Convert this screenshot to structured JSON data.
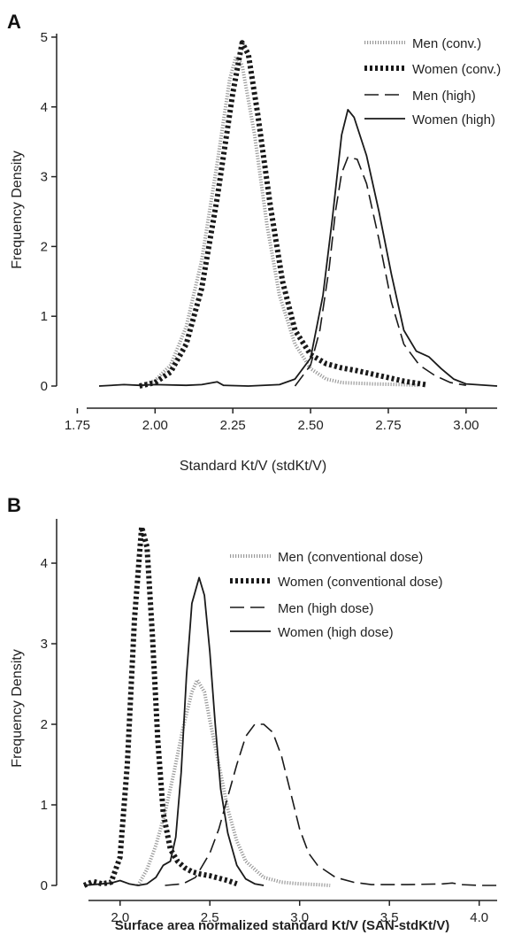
{
  "chart_data": [
    {
      "type": "line",
      "panel_label": "A",
      "xlabel": "Standard Kt/V (stdKt/V)",
      "ylabel": "Frequency Density",
      "xlim": [
        1.8,
        3.1
      ],
      "ylim": [
        0,
        5.05
      ],
      "xticks": [
        1.75,
        2.0,
        2.25,
        2.5,
        2.75,
        3.0
      ],
      "xtick_labels": [
        "1.75",
        "2.00",
        "2.25",
        "2.50",
        "2.75",
        "3.00"
      ],
      "yticks": [
        0,
        1,
        2,
        3,
        4,
        5
      ],
      "ytick_labels": [
        "0",
        "1",
        "2",
        "3",
        "4",
        "5"
      ],
      "grid": false,
      "legend_position": "top-right",
      "series": [
        {
          "name": "Men (conv.)",
          "style": "dotted-thin",
          "points": [
            [
              1.95,
              0
            ],
            [
              2.0,
              0.08
            ],
            [
              2.05,
              0.3
            ],
            [
              2.1,
              0.85
            ],
            [
              2.15,
              1.8
            ],
            [
              2.2,
              3.2
            ],
            [
              2.24,
              4.4
            ],
            [
              2.26,
              4.72
            ],
            [
              2.28,
              4.6
            ],
            [
              2.32,
              3.6
            ],
            [
              2.36,
              2.3
            ],
            [
              2.4,
              1.3
            ],
            [
              2.45,
              0.6
            ],
            [
              2.5,
              0.25
            ],
            [
              2.55,
              0.1
            ],
            [
              2.6,
              0.05
            ],
            [
              2.7,
              0.03
            ],
            [
              2.8,
              0.02
            ],
            [
              2.85,
              0.01
            ]
          ]
        },
        {
          "name": "Women (conv.)",
          "style": "dotted-thick",
          "points": [
            [
              1.95,
              0
            ],
            [
              2.0,
              0.05
            ],
            [
              2.05,
              0.2
            ],
            [
              2.1,
              0.6
            ],
            [
              2.15,
              1.4
            ],
            [
              2.2,
              2.7
            ],
            [
              2.25,
              4.2
            ],
            [
              2.28,
              4.92
            ],
            [
              2.3,
              4.75
            ],
            [
              2.33,
              3.9
            ],
            [
              2.37,
              2.6
            ],
            [
              2.41,
              1.5
            ],
            [
              2.45,
              0.8
            ],
            [
              2.5,
              0.45
            ],
            [
              2.55,
              0.32
            ],
            [
              2.6,
              0.26
            ],
            [
              2.65,
              0.22
            ],
            [
              2.7,
              0.17
            ],
            [
              2.75,
              0.12
            ],
            [
              2.8,
              0.07
            ],
            [
              2.87,
              0.02
            ]
          ]
        },
        {
          "name": "Men (high)",
          "style": "dashed",
          "points": [
            [
              2.45,
              0
            ],
            [
              2.5,
              0.3
            ],
            [
              2.53,
              0.8
            ],
            [
              2.56,
              1.7
            ],
            [
              2.58,
              2.5
            ],
            [
              2.6,
              3.05
            ],
            [
              2.62,
              3.28
            ],
            [
              2.65,
              3.25
            ],
            [
              2.68,
              2.9
            ],
            [
              2.72,
              2.1
            ],
            [
              2.76,
              1.2
            ],
            [
              2.8,
              0.6
            ],
            [
              2.85,
              0.3
            ],
            [
              2.9,
              0.15
            ],
            [
              2.95,
              0.05
            ],
            [
              3.0,
              0.01
            ]
          ]
        },
        {
          "name": "Women (high)",
          "style": "solid",
          "points": [
            [
              1.82,
              0
            ],
            [
              1.9,
              0.02
            ],
            [
              1.95,
              0.01
            ],
            [
              2.0,
              0.02
            ],
            [
              2.1,
              0.01
            ],
            [
              2.15,
              0.02
            ],
            [
              2.2,
              0.06
            ],
            [
              2.22,
              0.01
            ],
            [
              2.3,
              0
            ],
            [
              2.4,
              0.02
            ],
            [
              2.45,
              0.1
            ],
            [
              2.5,
              0.4
            ],
            [
              2.54,
              1.3
            ],
            [
              2.57,
              2.4
            ],
            [
              2.6,
              3.6
            ],
            [
              2.62,
              3.96
            ],
            [
              2.64,
              3.85
            ],
            [
              2.68,
              3.3
            ],
            [
              2.72,
              2.5
            ],
            [
              2.76,
              1.6
            ],
            [
              2.8,
              0.8
            ],
            [
              2.84,
              0.5
            ],
            [
              2.88,
              0.42
            ],
            [
              2.92,
              0.25
            ],
            [
              2.96,
              0.1
            ],
            [
              3.0,
              0.03
            ],
            [
              3.1,
              0
            ]
          ]
        }
      ]
    },
    {
      "type": "line",
      "panel_label": "B",
      "xlabel": "Surface area normalized standard Kt/V (SAN-stdKt/V)",
      "ylabel": "Frequency Density",
      "xlim": [
        1.75,
        4.1
      ],
      "ylim": [
        0,
        4.55
      ],
      "xticks": [
        2.0,
        2.5,
        3.0,
        3.5,
        4.0
      ],
      "xtick_labels": [
        "2.0",
        "2.5",
        "3.0",
        "3.5",
        "4.0"
      ],
      "yticks": [
        0,
        1,
        2,
        3,
        4
      ],
      "ytick_labels": [
        "0",
        "1",
        "2",
        "3",
        "4"
      ],
      "grid": false,
      "legend_position": "top-right",
      "series": [
        {
          "name": "Men (conventional dose)",
          "style": "dotted-thin",
          "points": [
            [
              2.1,
              0
            ],
            [
              2.15,
              0.2
            ],
            [
              2.2,
              0.5
            ],
            [
              2.25,
              0.9
            ],
            [
              2.3,
              1.4
            ],
            [
              2.35,
              1.95
            ],
            [
              2.4,
              2.4
            ],
            [
              2.43,
              2.55
            ],
            [
              2.47,
              2.4
            ],
            [
              2.5,
              2.05
            ],
            [
              2.55,
              1.5
            ],
            [
              2.6,
              0.95
            ],
            [
              2.65,
              0.55
            ],
            [
              2.7,
              0.3
            ],
            [
              2.8,
              0.1
            ],
            [
              2.9,
              0.04
            ],
            [
              3.0,
              0.02
            ],
            [
              3.1,
              0.01
            ],
            [
              3.17,
              0
            ]
          ]
        },
        {
          "name": "Women (conventional dose)",
          "style": "dotted-thick",
          "points": [
            [
              1.8,
              0
            ],
            [
              1.85,
              0.05
            ],
            [
              1.9,
              0.02
            ],
            [
              1.95,
              0.04
            ],
            [
              2.0,
              0.35
            ],
            [
              2.04,
              1.5
            ],
            [
              2.08,
              3.3
            ],
            [
              2.12,
              4.45
            ],
            [
              2.15,
              4.2
            ],
            [
              2.18,
              3.1
            ],
            [
              2.21,
              1.8
            ],
            [
              2.24,
              0.9
            ],
            [
              2.28,
              0.45
            ],
            [
              2.32,
              0.3
            ],
            [
              2.36,
              0.22
            ],
            [
              2.4,
              0.17
            ],
            [
              2.45,
              0.14
            ],
            [
              2.5,
              0.12
            ],
            [
              2.55,
              0.09
            ],
            [
              2.6,
              0.06
            ],
            [
              2.65,
              0.02
            ]
          ]
        },
        {
          "name": "Men (high dose)",
          "style": "dashed",
          "points": [
            [
              2.25,
              0
            ],
            [
              2.35,
              0.02
            ],
            [
              2.42,
              0.1
            ],
            [
              2.5,
              0.4
            ],
            [
              2.55,
              0.7
            ],
            [
              2.6,
              1.1
            ],
            [
              2.65,
              1.5
            ],
            [
              2.7,
              1.85
            ],
            [
              2.75,
              2.0
            ],
            [
              2.8,
              2.0
            ],
            [
              2.85,
              1.9
            ],
            [
              2.9,
              1.6
            ],
            [
              2.95,
              1.15
            ],
            [
              3.0,
              0.7
            ],
            [
              3.05,
              0.4
            ],
            [
              3.1,
              0.25
            ],
            [
              3.2,
              0.1
            ],
            [
              3.3,
              0.04
            ],
            [
              3.4,
              0.01
            ],
            [
              3.6,
              0.01
            ],
            [
              3.8,
              0.02
            ],
            [
              3.85,
              0.03
            ],
            [
              3.9,
              0.01
            ],
            [
              4.0,
              0
            ],
            [
              4.1,
              0
            ]
          ]
        },
        {
          "name": "Women (high dose)",
          "style": "solid",
          "points": [
            [
              1.8,
              0
            ],
            [
              1.9,
              0.02
            ],
            [
              1.95,
              0.03
            ],
            [
              2.0,
              0.06
            ],
            [
              2.05,
              0.02
            ],
            [
              2.1,
              0
            ],
            [
              2.15,
              0.02
            ],
            [
              2.2,
              0.1
            ],
            [
              2.24,
              0.25
            ],
            [
              2.28,
              0.3
            ],
            [
              2.31,
              0.6
            ],
            [
              2.34,
              1.4
            ],
            [
              2.37,
              2.6
            ],
            [
              2.4,
              3.5
            ],
            [
              2.44,
              3.82
            ],
            [
              2.47,
              3.6
            ],
            [
              2.5,
              2.9
            ],
            [
              2.53,
              2.0
            ],
            [
              2.56,
              1.2
            ],
            [
              2.6,
              0.65
            ],
            [
              2.65,
              0.25
            ],
            [
              2.7,
              0.08
            ],
            [
              2.75,
              0.02
            ],
            [
              2.8,
              0
            ]
          ]
        }
      ]
    }
  ]
}
